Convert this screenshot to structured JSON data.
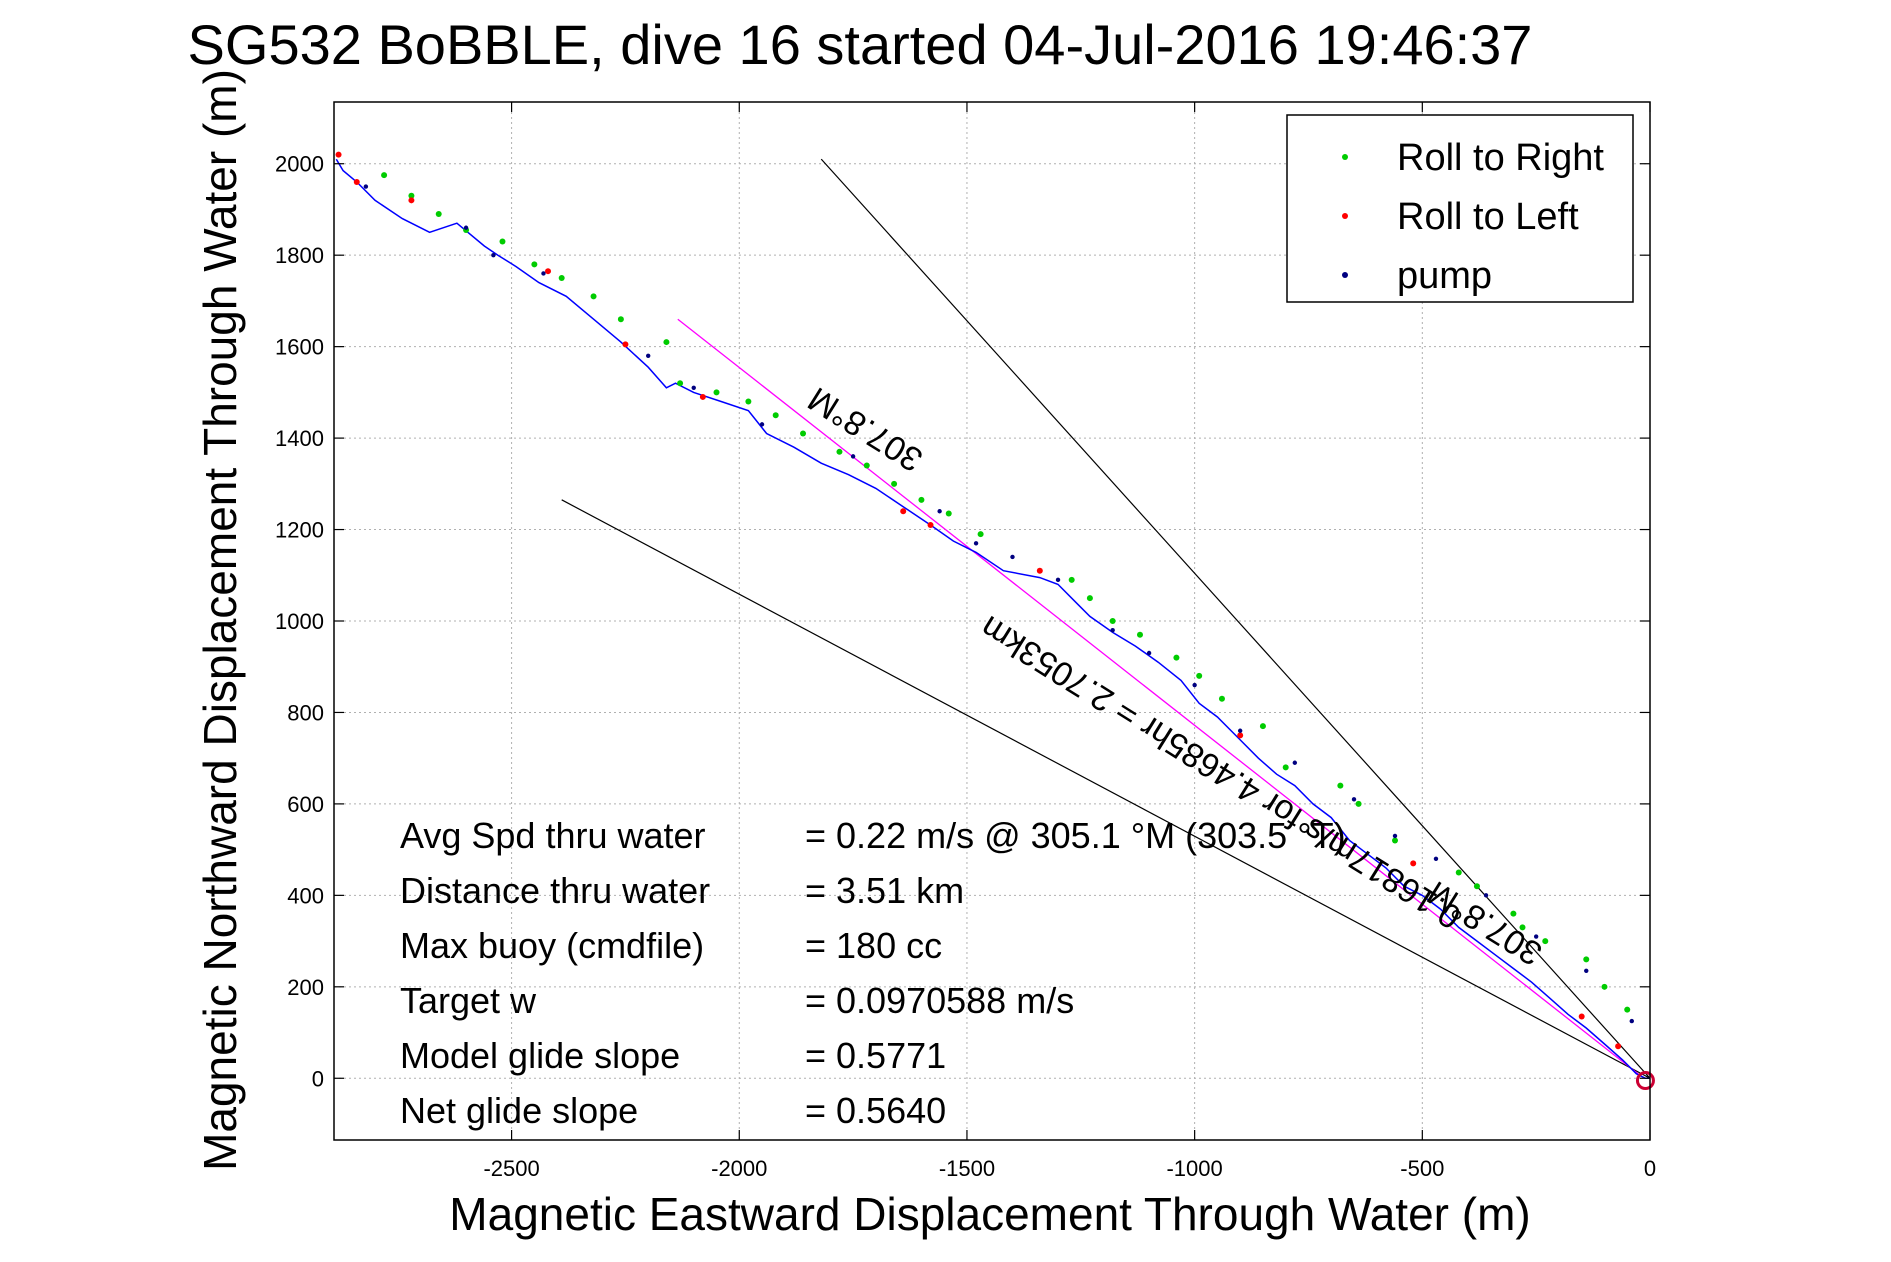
{
  "chart_data": {
    "type": "line",
    "title": "SG532 BoBBLE, dive 16 started 04-Jul-2016 19:46:37",
    "xlabel": "Magnetic Eastward Displacement Through Water (m)",
    "ylabel": "Magnetic Northward Displacement Through Water (m)",
    "xlim": [
      -2890,
      0
    ],
    "ylim": [
      -135,
      2135
    ],
    "xticks": [
      -2500,
      -2000,
      -1500,
      -1000,
      -500,
      0
    ],
    "yticks": [
      0,
      200,
      400,
      600,
      800,
      1000,
      1200,
      1400,
      1600,
      1800,
      2000
    ],
    "grid": true,
    "legend_position": "top-right",
    "legend": [
      {
        "label": "Roll to Right",
        "color": "#00cc00"
      },
      {
        "label": "Roll to Left",
        "color": "#ff0000"
      },
      {
        "label": "pump",
        "color": "#000080"
      }
    ],
    "track": {
      "color": "#0000ff",
      "x": [
        -2885,
        -2870,
        -2840,
        -2800,
        -2740,
        -2680,
        -2620,
        -2560,
        -2530,
        -2490,
        -2440,
        -2380,
        -2320,
        -2260,
        -2200,
        -2160,
        -2140,
        -2100,
        -2040,
        -1980,
        -1940,
        -1880,
        -1820,
        -1760,
        -1700,
        -1640,
        -1580,
        -1530,
        -1480,
        -1420,
        -1340,
        -1300,
        -1260,
        -1230,
        -1180,
        -1130,
        -1080,
        -1030,
        -990,
        -950,
        -900,
        -860,
        -820,
        -780,
        -740,
        -700,
        -660,
        -620,
        -580,
        -540,
        -500,
        -460,
        -420,
        -380,
        -340,
        -300,
        -260,
        -220,
        -180,
        -140,
        -100,
        -60,
        -30,
        -10,
        0
      ],
      "y": [
        2010,
        1985,
        1960,
        1920,
        1880,
        1850,
        1870,
        1820,
        1800,
        1775,
        1740,
        1710,
        1660,
        1610,
        1555,
        1510,
        1520,
        1500,
        1480,
        1460,
        1410,
        1380,
        1345,
        1320,
        1290,
        1250,
        1210,
        1175,
        1150,
        1110,
        1095,
        1080,
        1040,
        1010,
        975,
        945,
        910,
        870,
        820,
        790,
        740,
        700,
        665,
        640,
        600,
        570,
        520,
        490,
        460,
        420,
        400,
        370,
        330,
        300,
        270,
        240,
        210,
        175,
        140,
        110,
        75,
        40,
        10,
        0,
        0
      ]
    },
    "fit_line": {
      "color": "#ff00ff",
      "x": [
        -2135,
        -20
      ],
      "y": [
        1660,
        5
      ]
    },
    "cone_lines": [
      {
        "color": "#000000",
        "x": [
          -1820,
          0
        ],
        "y": [
          2010,
          0
        ]
      },
      {
        "color": "#000000",
        "x": [
          -2390,
          0
        ],
        "y": [
          1265,
          0
        ]
      }
    ],
    "markers": {
      "roll_right": {
        "x": [
          -2780,
          -2720,
          -2660,
          -2600,
          -2520,
          -2450,
          -2390,
          -2320,
          -2260,
          -2160,
          -2130,
          -2050,
          -1980,
          -1920,
          -1860,
          -1780,
          -1720,
          -1660,
          -1600,
          -1540,
          -1470,
          -1270,
          -1230,
          -1180,
          -1120,
          -1040,
          -990,
          -940,
          -850,
          -800,
          -680,
          -640,
          -560,
          -420,
          -380,
          -300,
          -280,
          -230,
          -140,
          -100,
          -50
        ],
        "y": [
          1975,
          1930,
          1890,
          1855,
          1830,
          1780,
          1750,
          1710,
          1660,
          1610,
          1520,
          1500,
          1480,
          1450,
          1410,
          1370,
          1340,
          1300,
          1265,
          1235,
          1190,
          1090,
          1050,
          1000,
          970,
          920,
          880,
          830,
          770,
          680,
          640,
          600,
          520,
          450,
          420,
          360,
          330,
          300,
          260,
          200,
          150
        ]
      },
      "roll_left": {
        "x": [
          -2880,
          -2840,
          -2720,
          -2420,
          -2250,
          -2080,
          -1640,
          -1580,
          -1340,
          -900,
          -520,
          -150,
          -70
        ],
        "y": [
          2020,
          1960,
          1920,
          1765,
          1605,
          1490,
          1240,
          1210,
          1110,
          750,
          470,
          135,
          70
        ]
      },
      "pump": {
        "x": [
          -2820,
          -2600,
          -2540,
          -2430,
          -2200,
          -2100,
          -1950,
          -1750,
          -1560,
          -1480,
          -1400,
          -1300,
          -1180,
          -1100,
          -1000,
          -900,
          -780,
          -650,
          -560,
          -470,
          -360,
          -250,
          -140,
          -40
        ],
        "y": [
          1950,
          1860,
          1800,
          1760,
          1580,
          1510,
          1430,
          1360,
          1240,
          1170,
          1140,
          1090,
          980,
          930,
          860,
          760,
          690,
          610,
          530,
          480,
          400,
          310,
          235,
          125
        ]
      }
    },
    "annotations": [
      {
        "text": "307.8°M",
        "anchor_x": -1710,
        "anchor_y": 1440,
        "angle_deg": 212
      },
      {
        "text": "0.16817m/s for 4.4685hr = 2.7053km",
        "anchor_x": -930,
        "anchor_y": 690,
        "angle_deg": 212
      },
      {
        "text": "307.8°M",
        "anchor_x": -350,
        "anchor_y": 360,
        "angle_deg": 212
      }
    ],
    "stats": [
      {
        "label": "Avg Spd thru water",
        "value": "=  0.22 m/s @ 305.1 °M (303.5 °T)"
      },
      {
        "label": "Distance thru water",
        "value": "=  3.51 km"
      },
      {
        "label": "Max buoy (cmdfile)",
        "value": "= 180 cc"
      },
      {
        "label": "Target w",
        "value": "= 0.0970588 m/s"
      },
      {
        "label": "Model glide slope",
        "value": "= 0.5771"
      },
      {
        "label": "Net glide slope",
        "value": "= 0.5640"
      }
    ]
  }
}
